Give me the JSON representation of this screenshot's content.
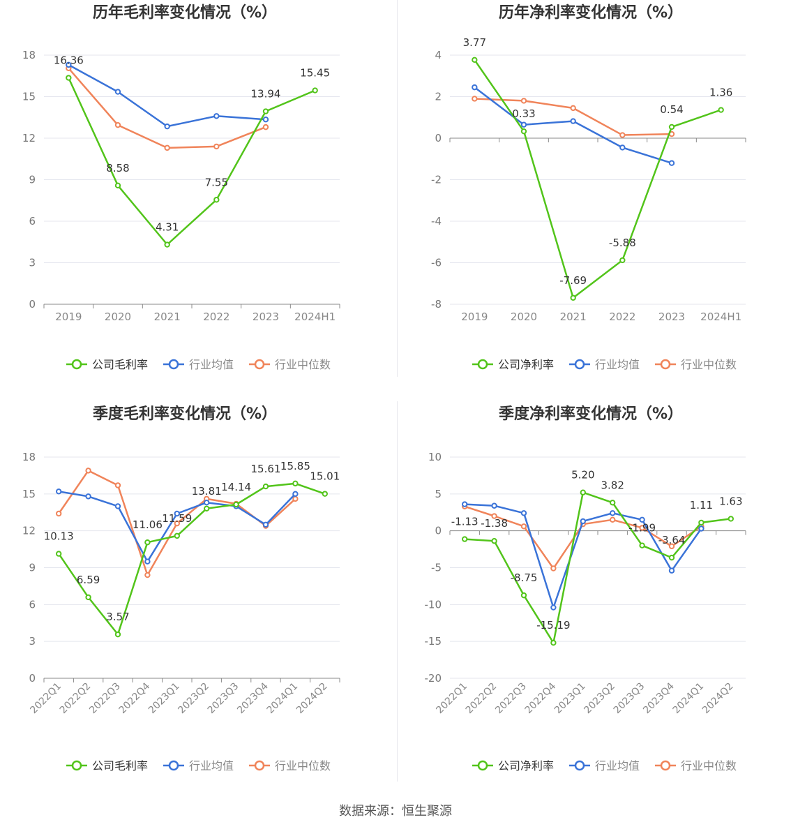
{
  "source_text": "数据来源：恒生聚源",
  "colors": {
    "company": "#52c41a",
    "average": "#3a73d8",
    "median": "#f0845a"
  },
  "chart_data": [
    {
      "type": "line",
      "title": "历年毛利率变化情况（%）",
      "categories": [
        "2019",
        "2020",
        "2021",
        "2022",
        "2023",
        "2024H1"
      ],
      "ylim": [
        0,
        18
      ],
      "yticks": [
        0,
        3,
        6,
        9,
        12,
        15,
        18
      ],
      "grid": true,
      "legend_position": "bottom",
      "legend": [
        "公司毛利率",
        "行业均值",
        "行业中位数"
      ],
      "series": [
        {
          "name": "公司毛利率",
          "values": [
            16.36,
            8.58,
            4.31,
            7.55,
            13.94,
            15.45
          ],
          "labels": true
        },
        {
          "name": "行业均值",
          "values": [
            17.3,
            15.35,
            12.85,
            13.6,
            13.35,
            null
          ]
        },
        {
          "name": "行业中位数",
          "values": [
            17.05,
            12.95,
            11.3,
            11.4,
            12.8,
            null
          ]
        }
      ]
    },
    {
      "type": "line",
      "title": "历年净利率变化情况（%）",
      "categories": [
        "2019",
        "2020",
        "2021",
        "2022",
        "2023",
        "2024H1"
      ],
      "ylim": [
        -8,
        4
      ],
      "yticks": [
        -8,
        -6,
        -4,
        -2,
        0,
        2,
        4
      ],
      "grid": true,
      "legend_position": "bottom",
      "legend": [
        "公司净利率",
        "行业均值",
        "行业中位数"
      ],
      "series": [
        {
          "name": "公司净利率",
          "values": [
            3.77,
            0.33,
            -7.69,
            -5.88,
            0.54,
            1.36
          ],
          "labels": true
        },
        {
          "name": "行业均值",
          "values": [
            2.45,
            0.65,
            0.82,
            -0.45,
            -1.2,
            null
          ]
        },
        {
          "name": "行业中位数",
          "values": [
            1.9,
            1.8,
            1.45,
            0.15,
            0.2,
            null
          ]
        }
      ]
    },
    {
      "type": "line",
      "title": "季度毛利率变化情况（%）",
      "categories": [
        "2022Q1",
        "2022Q2",
        "2022Q3",
        "2022Q4",
        "2023Q1",
        "2023Q2",
        "2023Q3",
        "2023Q4",
        "2024Q1",
        "2024Q2"
      ],
      "ylim": [
        0,
        18
      ],
      "yticks": [
        0,
        3,
        6,
        9,
        12,
        15,
        18
      ],
      "grid": true,
      "legend_position": "bottom",
      "legend": [
        "公司毛利率",
        "行业均值",
        "行业中位数"
      ],
      "series": [
        {
          "name": "公司毛利率",
          "values": [
            10.13,
            6.59,
            3.57,
            11.06,
            11.59,
            13.81,
            14.14,
            15.61,
            15.85,
            15.01
          ],
          "labels": true
        },
        {
          "name": "行业均值",
          "values": [
            15.2,
            14.8,
            14.0,
            9.5,
            13.4,
            14.3,
            14.0,
            12.5,
            15.0,
            null
          ]
        },
        {
          "name": "行业中位数",
          "values": [
            13.4,
            16.9,
            15.7,
            8.4,
            12.6,
            14.6,
            14.2,
            12.4,
            14.6,
            null
          ]
        }
      ]
    },
    {
      "type": "line",
      "title": "季度净利率变化情况（%）",
      "categories": [
        "2022Q1",
        "2022Q2",
        "2022Q3",
        "2022Q4",
        "2023Q1",
        "2023Q2",
        "2023Q3",
        "2023Q4",
        "2024Q1",
        "2024Q2"
      ],
      "ylim": [
        -20,
        10
      ],
      "yticks": [
        -20,
        -15,
        -10,
        -5,
        0,
        5,
        10
      ],
      "grid": true,
      "legend_position": "bottom",
      "legend": [
        "公司净利率",
        "行业均值",
        "行业中位数"
      ],
      "series": [
        {
          "name": "公司净利率",
          "values": [
            -1.13,
            -1.38,
            -8.75,
            -15.19,
            5.2,
            3.82,
            -1.99,
            -3.64,
            1.11,
            1.63
          ],
          "labels": true
        },
        {
          "name": "行业均值",
          "values": [
            3.6,
            3.4,
            2.4,
            -10.4,
            1.3,
            2.4,
            1.5,
            -5.4,
            0.3,
            null
          ]
        },
        {
          "name": "行业中位数",
          "values": [
            3.3,
            2.0,
            0.6,
            -5.1,
            0.9,
            1.5,
            0.4,
            -2.1,
            0.6,
            null
          ]
        }
      ]
    }
  ]
}
